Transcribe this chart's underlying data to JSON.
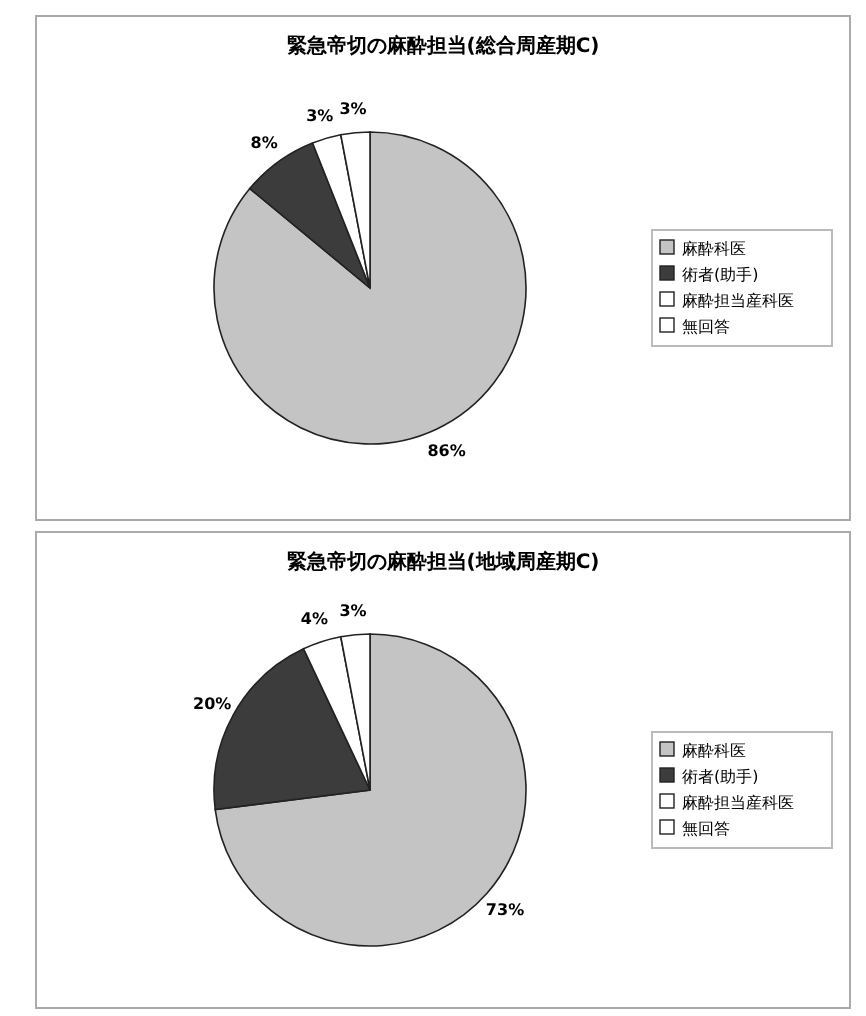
{
  "chart_data": [
    {
      "type": "pie",
      "title": "緊急帝切の麻酔担当(総合周産期C)",
      "categories": [
        "麻酔科医",
        "術者(助手)",
        "麻酔担当産科医",
        "無回答"
      ],
      "values": [
        86,
        8,
        3,
        3
      ],
      "value_labels": [
        "86%",
        "8%",
        "3%",
        "3%"
      ],
      "colors": [
        "#c4c4c4",
        "#3c3c3c",
        "#ffffff",
        "#ffffff"
      ],
      "legend": "right"
    },
    {
      "type": "pie",
      "title": "緊急帝切の麻酔担当(地域周産期C)",
      "categories": [
        "麻酔科医",
        "術者(助手)",
        "麻酔担当産科医",
        "無回答"
      ],
      "values": [
        73,
        20,
        4,
        3
      ],
      "value_labels": [
        "73%",
        "20%",
        "4%",
        "3%"
      ],
      "colors": [
        "#c4c4c4",
        "#3c3c3c",
        "#ffffff",
        "#ffffff"
      ],
      "legend": "right"
    }
  ]
}
